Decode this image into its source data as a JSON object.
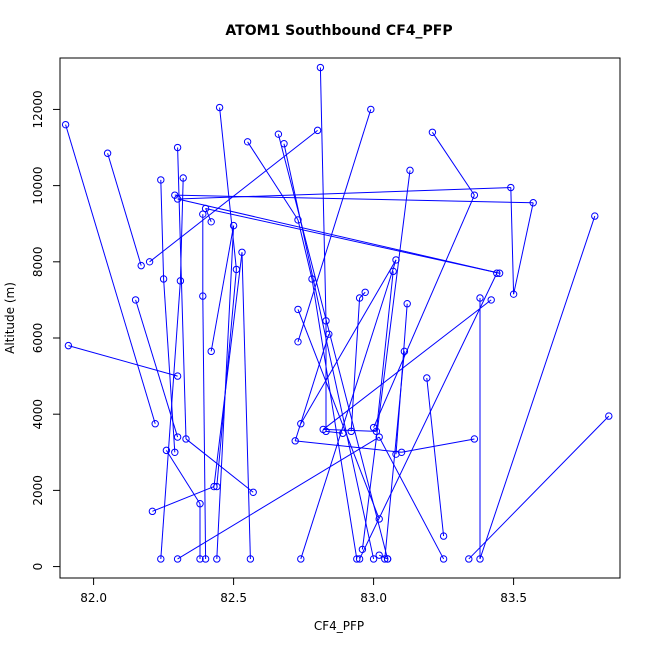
{
  "chart_data": {
    "type": "line",
    "title": "ATOM1 Southbound CF4_PFP",
    "xlabel": "CF4_PFP",
    "ylabel": "Altitude (m)",
    "xlim": [
      81.88,
      83.88
    ],
    "ylim": [
      -300,
      13350
    ],
    "x_ticks": [
      82.0,
      82.5,
      83.0,
      83.5
    ],
    "x_tick_labels": [
      "82.0",
      "82.5",
      "83.0",
      "83.5"
    ],
    "y_ticks": [
      0,
      2000,
      4000,
      6000,
      8000,
      10000,
      12000
    ],
    "y_tick_labels": [
      "0",
      "2000",
      "4000",
      "6000",
      "8000",
      "10000",
      "12000"
    ],
    "grid": false,
    "legend": "none",
    "series": [
      {
        "color": "#0000ff",
        "marker": "open-circle",
        "points": [
          [
            81.91,
            5800
          ],
          [
            82.3,
            5000
          ],
          [
            81.9,
            11600
          ],
          [
            82.22,
            3750
          ],
          [
            82.05,
            10850
          ],
          [
            82.17,
            7900
          ],
          [
            82.15,
            7000
          ],
          [
            82.3,
            3400
          ],
          [
            82.3,
            11000
          ],
          [
            82.33,
            3350
          ],
          [
            82.57,
            1950
          ],
          [
            82.32,
            10200
          ],
          [
            82.31,
            7500
          ],
          [
            82.24,
            200
          ],
          [
            82.24,
            10150
          ],
          [
            82.25,
            7550
          ],
          [
            82.29,
            3000
          ],
          [
            82.26,
            3050
          ],
          [
            82.38,
            1650
          ],
          [
            82.38,
            200
          ],
          [
            82.29,
            9750
          ],
          [
            83.57,
            9550
          ],
          [
            83.5,
            7150
          ],
          [
            83.49,
            9950
          ],
          [
            82.3,
            9650
          ],
          [
            83.45,
            7700
          ],
          [
            82.4,
            9400
          ],
          [
            82.42,
            9050
          ],
          [
            82.45,
            12050
          ],
          [
            82.51,
            7800
          ],
          [
            82.44,
            2100
          ],
          [
            82.39,
            9250
          ],
          [
            82.39,
            7100
          ],
          [
            82.4,
            200
          ],
          [
            82.21,
            1450
          ],
          [
            82.43,
            2100
          ],
          [
            82.53,
            8250
          ],
          [
            82.56,
            200
          ],
          [
            82.42,
            5650
          ],
          [
            82.5,
            8950
          ],
          [
            82.44,
            200
          ],
          [
            82.55,
            11150
          ],
          [
            82.73,
            9100
          ],
          [
            82.78,
            7550
          ],
          [
            82.94,
            200
          ],
          [
            82.66,
            11350
          ],
          [
            83.05,
            200
          ],
          [
            82.68,
            11100
          ],
          [
            83.0,
            200
          ],
          [
            82.81,
            13100
          ],
          [
            82.83,
            6450
          ],
          [
            82.83,
            3550
          ],
          [
            82.89,
            3500
          ],
          [
            82.8,
            11450
          ],
          [
            82.2,
            8000
          ],
          [
            82.99,
            12000
          ],
          [
            82.73,
            5900
          ],
          [
            82.73,
            6750
          ],
          [
            83.02,
            1250
          ],
          [
            83.13,
            10400
          ],
          [
            82.96,
            450
          ],
          [
            82.74,
            3750
          ],
          [
            83.08,
            8050
          ],
          [
            82.74,
            200
          ],
          [
            83.07,
            7750
          ],
          [
            83.01,
            3550
          ],
          [
            82.82,
            3600
          ],
          [
            83.42,
            7000
          ],
          [
            82.97,
            7200
          ],
          [
            82.95,
            7050
          ],
          [
            82.92,
            3550
          ],
          [
            83.12,
            6900
          ],
          [
            83.08,
            2950
          ],
          [
            83.11,
            5650
          ],
          [
            83.04,
            200
          ],
          [
            83.21,
            11400
          ],
          [
            83.36,
            9750
          ],
          [
            83.0,
            3650
          ],
          [
            83.19,
            4950
          ],
          [
            83.25,
            800
          ],
          [
            83.44,
            7700
          ],
          [
            82.95,
            200
          ],
          [
            83.38,
            7050
          ],
          [
            83.38,
            200
          ],
          [
            83.79,
            9200
          ],
          [
            83.84,
            3950
          ],
          [
            83.34,
            200
          ],
          [
            83.36,
            3350
          ],
          [
            83.1,
            3000
          ],
          [
            82.72,
            3300
          ],
          [
            82.84,
            6100
          ],
          [
            83.02,
            300
          ],
          [
            83.05,
            200
          ],
          [
            83.25,
            200
          ],
          [
            83.02,
            3400
          ],
          [
            82.3,
            200
          ]
        ],
        "breaks": [
          2,
          4,
          6,
          8,
          11,
          14,
          17,
          20,
          28,
          31,
          34,
          38,
          41,
          45,
          47,
          49,
          53,
          55,
          57,
          59,
          61,
          64,
          68,
          71,
          73,
          75,
          78,
          80,
          82,
          85,
          87,
          91,
          93
        ]
      }
    ]
  }
}
